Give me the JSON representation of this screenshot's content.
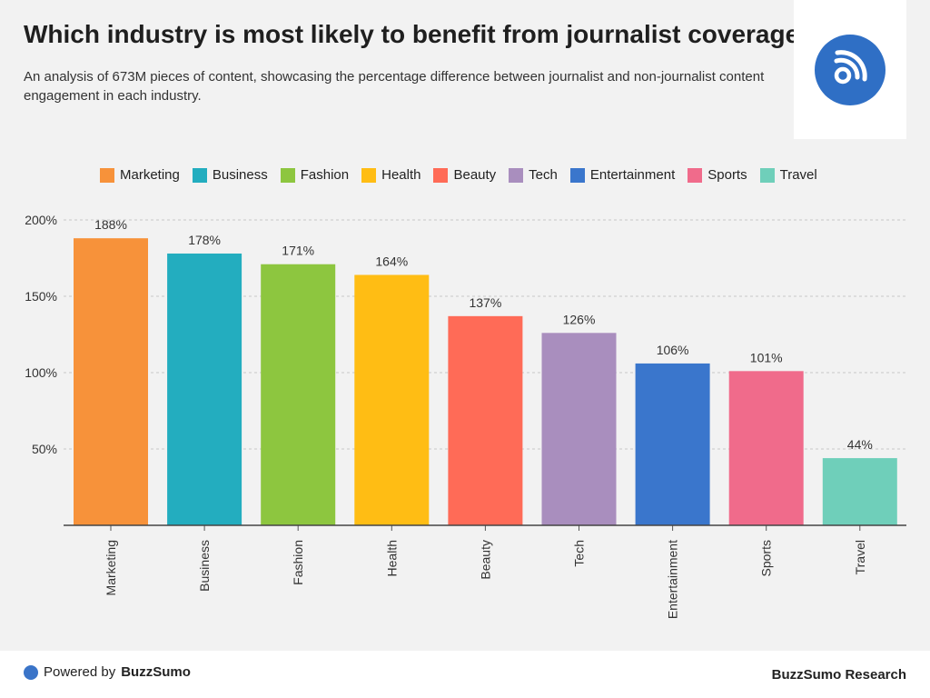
{
  "header": {
    "title": "Which industry is most likely to benefit from journalist coverage?",
    "subtitle": "An analysis of 673M pieces of content, showcasing the percentage difference between journalist and non-journalist content engagement in each industry."
  },
  "logo": {
    "icon": "broadcast-icon",
    "color": "#2f6fc5"
  },
  "chart_data": {
    "type": "bar",
    "title": "Which industry is most likely to benefit from journalist coverage?",
    "subtitle": "An analysis of 673M pieces of content, showcasing the percentage difference between journalist and non-journalist content engagement in each industry.",
    "xlabel": "",
    "ylabel": "",
    "categories": [
      "Marketing",
      "Business",
      "Fashion",
      "Health",
      "Beauty",
      "Tech",
      "Entertainment",
      "Sports",
      "Travel"
    ],
    "values": [
      188,
      178,
      171,
      164,
      137,
      126,
      106,
      101,
      44
    ],
    "value_labels": [
      "188%",
      "178%",
      "171%",
      "164%",
      "137%",
      "126%",
      "106%",
      "101%",
      "44%"
    ],
    "colors": [
      "#f7923a",
      "#23adbf",
      "#8dc63f",
      "#ffbd14",
      "#ff6b57",
      "#a98ebe",
      "#3a76cc",
      "#f06b8b",
      "#6fcfba"
    ],
    "ylim": [
      0,
      200
    ],
    "yticks": [
      {
        "value": 50,
        "label": "50%"
      },
      {
        "value": 100,
        "label": "100%"
      },
      {
        "value": 150,
        "label": "150%"
      },
      {
        "value": 200,
        "label": "200%"
      }
    ],
    "grid": true,
    "legend": "top"
  },
  "footer": {
    "powered_prefix": "Powered by",
    "powered_brand": "BuzzSumo",
    "research_label": "BuzzSumo Research"
  }
}
